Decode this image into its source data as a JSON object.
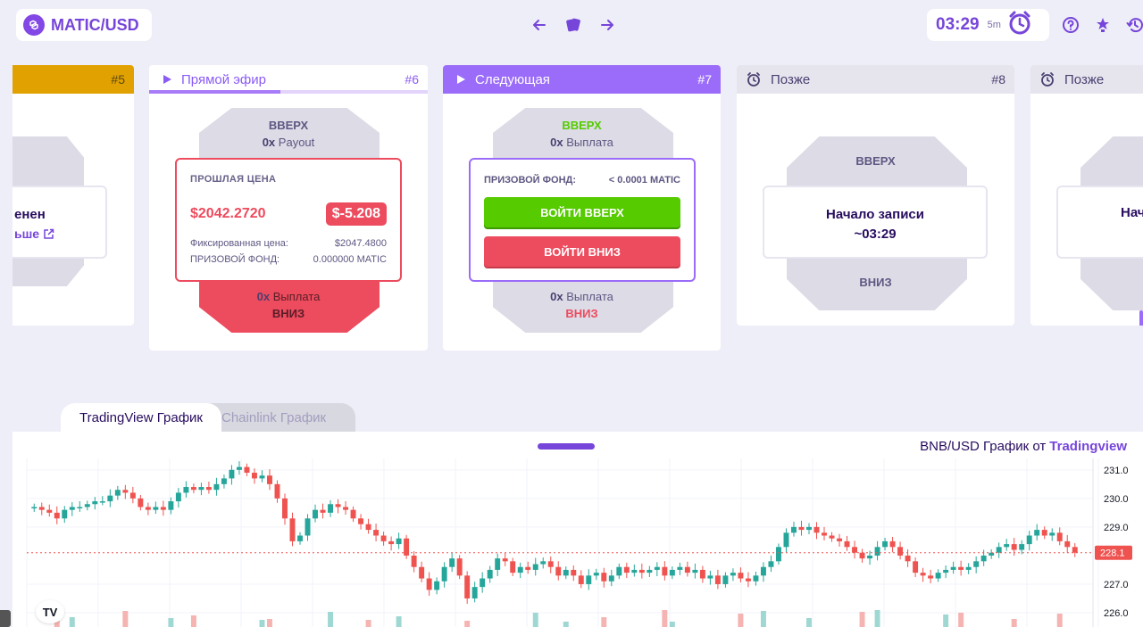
{
  "header": {
    "pair": "MATIC/USD",
    "timer": "03:29",
    "interval": "5m"
  },
  "cards": {
    "expired": {
      "epoch": "#5",
      "text_a": "енен",
      "text_b": "ьше"
    },
    "live": {
      "status": "Прямой эфир",
      "epoch": "#6",
      "up_label": "ВВЕРХ",
      "up_multiplier": "0x",
      "up_payout": "Payout",
      "last_price_label": "ПРОШЛАЯ ЦЕНА",
      "last_price": "$2042.2720",
      "change": "$-5.208",
      "locked_label": "Фиксированная цена:",
      "locked_price": "$2047.4800",
      "prize_label": "ПРИЗОВОЙ ФОНД:",
      "prize_value": "0.000000 MATIC",
      "down_multiplier": "0x",
      "down_payout": "Выплата",
      "down_label": "ВНИЗ",
      "progress": 0.47
    },
    "next": {
      "status": "Следующая",
      "epoch": "#7",
      "up_label": "ВВЕРХ",
      "up_multiplier": "0x",
      "up_payout": "Выплата",
      "prize_label": "ПРИЗОВОЙ ФОНД:",
      "prize_value": "< 0.0001 MATIC",
      "enter_up": "ВОЙТИ ВВЕРХ",
      "enter_down": "ВОЙТИ ВНИЗ",
      "down_multiplier": "0x",
      "down_payout": "Выплата",
      "down_label": "ВНИЗ"
    },
    "later1": {
      "status": "Позже",
      "epoch": "#8",
      "up_label": "ВВЕРХ",
      "starts_label": "Начало записи",
      "starts_time": "~03:29",
      "down_label": "ВНИЗ"
    },
    "later2": {
      "status": "Позже",
      "starts_label": "Нач"
    }
  },
  "chart_tabs": {
    "tradingview": "TradingView График",
    "chainlink": "Chainlink График"
  },
  "chart_title": {
    "prefix": "BNB/USD График от",
    "source": "Tradingview"
  },
  "chart_data": {
    "type": "candlestick",
    "y_ticks": [
      "231.0",
      "230.0",
      "229.0",
      "228.1",
      "227.0",
      "226.0"
    ],
    "current_price": "228.1",
    "ylim": [
      225.5,
      231.4
    ],
    "close_series": [
      229.7,
      229.6,
      229.5,
      229.3,
      229.6,
      229.7,
      229.7,
      229.8,
      229.9,
      229.9,
      230.1,
      230.3,
      230.2,
      230.0,
      229.7,
      229.6,
      229.7,
      229.6,
      229.9,
      230.2,
      230.4,
      230.3,
      230.4,
      230.3,
      230.5,
      230.7,
      231.0,
      231.1,
      230.9,
      230.7,
      230.8,
      230.5,
      230.0,
      229.3,
      228.5,
      228.7,
      229.3,
      229.6,
      229.5,
      229.8,
      229.7,
      229.6,
      229.3,
      229.1,
      228.9,
      228.7,
      228.5,
      228.4,
      228.6,
      228.0,
      227.6,
      227.2,
      226.8,
      227.1,
      227.6,
      227.9,
      227.3,
      226.5,
      226.9,
      227.2,
      227.5,
      227.9,
      227.8,
      227.4,
      227.6,
      227.5,
      227.7,
      227.8,
      227.6,
      227.3,
      227.5,
      227.3,
      227.0,
      227.3,
      227.4,
      227.1,
      227.3,
      227.6,
      227.4,
      227.5,
      227.4,
      227.5,
      227.6,
      227.3,
      227.5,
      227.6,
      227.4,
      227.5,
      227.2,
      227.3,
      227.0,
      227.3,
      227.4,
      227.2,
      227.1,
      227.3,
      227.6,
      227.8,
      228.3,
      228.8,
      229.0,
      228.9,
      229.0,
      228.8,
      228.7,
      228.6,
      228.5,
      228.3,
      228.1,
      227.9,
      228.0,
      228.3,
      228.5,
      228.3,
      228.0,
      227.8,
      227.4,
      227.3,
      227.2,
      227.4,
      227.5,
      227.6,
      227.5,
      227.6,
      227.8,
      228.0,
      228.1,
      228.3,
      228.4,
      228.2,
      228.4,
      228.7,
      228.9,
      228.7,
      228.8,
      228.5,
      228.3,
      228.1
    ]
  },
  "colors": {
    "accent": "#7645d9",
    "up": "#55cb00",
    "down": "#ed4b5e",
    "candle_up": "#26a69a",
    "candle_down": "#ef5350",
    "expired": "#e1a100"
  }
}
